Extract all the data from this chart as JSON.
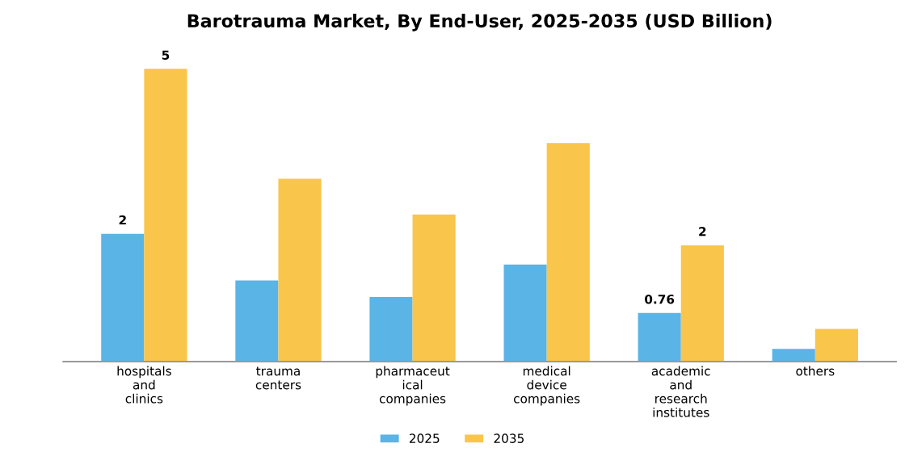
{
  "chart_data": {
    "type": "bar",
    "title": "Barotrauma Market, By End-User, 2025-2035 (USD Billion)",
    "categories": [
      "hospitals\nand\nclinics",
      "trauma\ncenters",
      "pharmaceut\nical\ncompanies",
      "medical\ndevice\ncompanies",
      "academic\nand\nresearch\ninstitutes",
      "others"
    ],
    "series": [
      {
        "name": "2025",
        "color": "#5ab4e5",
        "values": [
          2.0,
          1.27,
          1.01,
          1.52,
          0.76,
          0.2
        ],
        "value_labels": [
          "2",
          null,
          null,
          null,
          "0.76",
          null
        ]
      },
      {
        "name": "2035",
        "color": "#f9c54a",
        "values": [
          4.58,
          2.86,
          2.3,
          3.42,
          1.82,
          0.51
        ],
        "value_labels": [
          "5",
          null,
          null,
          null,
          "2",
          null
        ]
      }
    ],
    "tick_labels": "x",
    "grid": false,
    "legend": "bottom"
  }
}
